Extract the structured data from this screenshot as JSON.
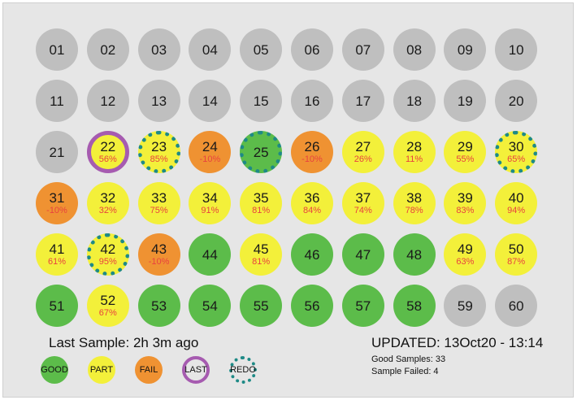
{
  "grid": [
    {
      "n": "01",
      "status": "grey",
      "pct": "",
      "ring": ""
    },
    {
      "n": "02",
      "status": "grey",
      "pct": "",
      "ring": ""
    },
    {
      "n": "03",
      "status": "grey",
      "pct": "",
      "ring": ""
    },
    {
      "n": "04",
      "status": "grey",
      "pct": "",
      "ring": ""
    },
    {
      "n": "05",
      "status": "grey",
      "pct": "",
      "ring": ""
    },
    {
      "n": "06",
      "status": "grey",
      "pct": "",
      "ring": ""
    },
    {
      "n": "07",
      "status": "grey",
      "pct": "",
      "ring": ""
    },
    {
      "n": "08",
      "status": "grey",
      "pct": "",
      "ring": ""
    },
    {
      "n": "09",
      "status": "grey",
      "pct": "",
      "ring": ""
    },
    {
      "n": "10",
      "status": "grey",
      "pct": "",
      "ring": ""
    },
    {
      "n": "11",
      "status": "grey",
      "pct": "",
      "ring": ""
    },
    {
      "n": "12",
      "status": "grey",
      "pct": "",
      "ring": ""
    },
    {
      "n": "13",
      "status": "grey",
      "pct": "",
      "ring": ""
    },
    {
      "n": "14",
      "status": "grey",
      "pct": "",
      "ring": ""
    },
    {
      "n": "15",
      "status": "grey",
      "pct": "",
      "ring": ""
    },
    {
      "n": "16",
      "status": "grey",
      "pct": "",
      "ring": ""
    },
    {
      "n": "17",
      "status": "grey",
      "pct": "",
      "ring": ""
    },
    {
      "n": "18",
      "status": "grey",
      "pct": "",
      "ring": ""
    },
    {
      "n": "19",
      "status": "grey",
      "pct": "",
      "ring": ""
    },
    {
      "n": "20",
      "status": "grey",
      "pct": "",
      "ring": ""
    },
    {
      "n": "21",
      "status": "grey",
      "pct": "",
      "ring": ""
    },
    {
      "n": "22",
      "status": "part",
      "pct": "56%",
      "ring": "last"
    },
    {
      "n": "23",
      "status": "part",
      "pct": "85%",
      "ring": "redo"
    },
    {
      "n": "24",
      "status": "fail",
      "pct": "-10%",
      "ring": ""
    },
    {
      "n": "25",
      "status": "good",
      "pct": "",
      "ring": "redo"
    },
    {
      "n": "26",
      "status": "fail",
      "pct": "-10%",
      "ring": ""
    },
    {
      "n": "27",
      "status": "part",
      "pct": "26%",
      "ring": ""
    },
    {
      "n": "28",
      "status": "part",
      "pct": "11%",
      "ring": ""
    },
    {
      "n": "29",
      "status": "part",
      "pct": "55%",
      "ring": ""
    },
    {
      "n": "30",
      "status": "part",
      "pct": "65%",
      "ring": "redo"
    },
    {
      "n": "31",
      "status": "fail",
      "pct": "-10%",
      "ring": ""
    },
    {
      "n": "32",
      "status": "part",
      "pct": "32%",
      "ring": ""
    },
    {
      "n": "33",
      "status": "part",
      "pct": "75%",
      "ring": ""
    },
    {
      "n": "34",
      "status": "part",
      "pct": "91%",
      "ring": ""
    },
    {
      "n": "35",
      "status": "part",
      "pct": "81%",
      "ring": ""
    },
    {
      "n": "36",
      "status": "part",
      "pct": "84%",
      "ring": ""
    },
    {
      "n": "37",
      "status": "part",
      "pct": "74%",
      "ring": ""
    },
    {
      "n": "38",
      "status": "part",
      "pct": "78%",
      "ring": ""
    },
    {
      "n": "39",
      "status": "part",
      "pct": "83%",
      "ring": ""
    },
    {
      "n": "40",
      "status": "part",
      "pct": "94%",
      "ring": ""
    },
    {
      "n": "41",
      "status": "part",
      "pct": "61%",
      "ring": ""
    },
    {
      "n": "42",
      "status": "part",
      "pct": "95%",
      "ring": "redo"
    },
    {
      "n": "43",
      "status": "fail",
      "pct": "-10%",
      "ring": ""
    },
    {
      "n": "44",
      "status": "good",
      "pct": "",
      "ring": ""
    },
    {
      "n": "45",
      "status": "part",
      "pct": "81%",
      "ring": ""
    },
    {
      "n": "46",
      "status": "good",
      "pct": "",
      "ring": ""
    },
    {
      "n": "47",
      "status": "good",
      "pct": "",
      "ring": ""
    },
    {
      "n": "48",
      "status": "good",
      "pct": "",
      "ring": ""
    },
    {
      "n": "49",
      "status": "part",
      "pct": "63%",
      "ring": ""
    },
    {
      "n": "50",
      "status": "part",
      "pct": "87%",
      "ring": ""
    },
    {
      "n": "51",
      "status": "good",
      "pct": "",
      "ring": ""
    },
    {
      "n": "52",
      "status": "part",
      "pct": "67%",
      "ring": ""
    },
    {
      "n": "53",
      "status": "good",
      "pct": "",
      "ring": ""
    },
    {
      "n": "54",
      "status": "good",
      "pct": "",
      "ring": ""
    },
    {
      "n": "55",
      "status": "good",
      "pct": "",
      "ring": ""
    },
    {
      "n": "56",
      "status": "good",
      "pct": "",
      "ring": ""
    },
    {
      "n": "57",
      "status": "good",
      "pct": "",
      "ring": ""
    },
    {
      "n": "58",
      "status": "good",
      "pct": "",
      "ring": ""
    },
    {
      "n": "59",
      "status": "grey",
      "pct": "",
      "ring": ""
    },
    {
      "n": "60",
      "status": "grey",
      "pct": "",
      "ring": ""
    }
  ],
  "footer": {
    "last_sample": "Last Sample: 2h 3m ago",
    "updated": "UPDATED: 13Oct20 - 13:14",
    "good_samples": "Good Samples: 33",
    "samples_failed": "Sample Failed: 4"
  },
  "legend": [
    {
      "label": "GOOD",
      "style": "good"
    },
    {
      "label": "PART",
      "style": "part"
    },
    {
      "label": "FAIL",
      "style": "fail"
    },
    {
      "label": "LAST",
      "style": "last"
    },
    {
      "label": "REDO",
      "style": "redo"
    }
  ],
  "colors": {
    "grey": "#bfbfbf",
    "good": "#5cbc4a",
    "part": "#f3f03a",
    "fail": "#ef9232",
    "last_ring": "#a65bb0",
    "redo_ring": "#1e8a86",
    "percent_text": "#e8423f"
  }
}
